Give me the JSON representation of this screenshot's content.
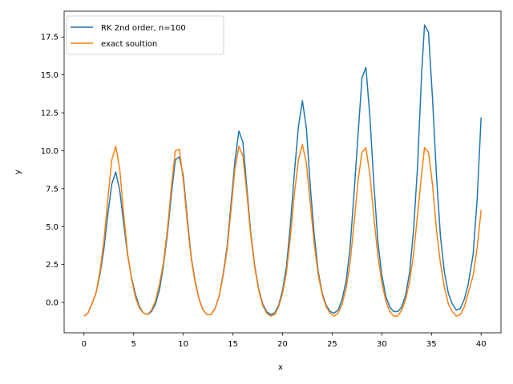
{
  "chart_data": {
    "type": "line",
    "title": "",
    "xlabel": "x",
    "ylabel": "y",
    "xlim": [
      -2,
      42
    ],
    "ylim": [
      -2,
      19.2
    ],
    "xticks": [
      0,
      5,
      10,
      15,
      20,
      25,
      30,
      35,
      40
    ],
    "xtick_labels": [
      "0",
      "5",
      "10",
      "15",
      "20",
      "25",
      "30",
      "35",
      "40"
    ],
    "yticks": [
      0,
      2.5,
      5,
      7.5,
      10,
      12.5,
      15,
      17.5
    ],
    "ytick_labels": [
      "0.0",
      "2.5",
      "5.0",
      "7.5",
      "10.0",
      "12.5",
      "15.0",
      "17.5"
    ],
    "grid": false,
    "legend_position": "top-left",
    "series": [
      {
        "name": "RK 2nd order, n=100",
        "color": "#1f77b4",
        "points": [
          [
            0,
            -0.9
          ],
          [
            0.4,
            -0.7
          ],
          [
            0.8,
            -0.1
          ],
          [
            1.2,
            0.6
          ],
          [
            1.6,
            1.8
          ],
          [
            2.0,
            3.5
          ],
          [
            2.4,
            5.8
          ],
          [
            2.8,
            7.8
          ],
          [
            3.2,
            8.6
          ],
          [
            3.6,
            7.4
          ],
          [
            4.0,
            5.2
          ],
          [
            4.4,
            3.1
          ],
          [
            4.8,
            1.6
          ],
          [
            5.2,
            0.5
          ],
          [
            5.6,
            -0.3
          ],
          [
            6.0,
            -0.7
          ],
          [
            6.4,
            -0.8
          ],
          [
            6.8,
            -0.6
          ],
          [
            7.2,
            -0.1
          ],
          [
            7.6,
            0.8
          ],
          [
            8.0,
            2.4
          ],
          [
            8.4,
            4.5
          ],
          [
            8.8,
            7.1
          ],
          [
            9.2,
            9.4
          ],
          [
            9.6,
            9.6
          ],
          [
            10.0,
            8.4
          ],
          [
            10.4,
            5.6
          ],
          [
            10.8,
            3.0
          ],
          [
            11.2,
            1.4
          ],
          [
            11.6,
            0.2
          ],
          [
            12.0,
            -0.5
          ],
          [
            12.4,
            -0.8
          ],
          [
            12.8,
            -0.8
          ],
          [
            13.2,
            -0.4
          ],
          [
            13.6,
            0.4
          ],
          [
            14.0,
            1.8
          ],
          [
            14.4,
            3.6
          ],
          [
            14.8,
            6.4
          ],
          [
            15.2,
            9.3
          ],
          [
            15.6,
            11.3
          ],
          [
            16.0,
            10.6
          ],
          [
            16.4,
            7.6
          ],
          [
            16.8,
            4.6
          ],
          [
            17.2,
            2.4
          ],
          [
            17.6,
            0.9
          ],
          [
            18.0,
            -0.1
          ],
          [
            18.4,
            -0.6
          ],
          [
            18.8,
            -0.8
          ],
          [
            19.2,
            -0.7
          ],
          [
            19.6,
            -0.2
          ],
          [
            20.0,
            0.8
          ],
          [
            20.4,
            2.4
          ],
          [
            20.8,
            5.2
          ],
          [
            21.2,
            8.6
          ],
          [
            21.6,
            11.6
          ],
          [
            22.0,
            13.3
          ],
          [
            22.4,
            11.5
          ],
          [
            22.8,
            7.6
          ],
          [
            23.2,
            4.4
          ],
          [
            23.6,
            2.0
          ],
          [
            24.0,
            0.6
          ],
          [
            24.4,
            -0.2
          ],
          [
            24.8,
            -0.6
          ],
          [
            25.2,
            -0.7
          ],
          [
            25.6,
            -0.5
          ],
          [
            26.0,
            0.2
          ],
          [
            26.4,
            1.4
          ],
          [
            26.8,
            3.6
          ],
          [
            27.2,
            7.2
          ],
          [
            27.6,
            11.0
          ],
          [
            28.0,
            14.8
          ],
          [
            28.4,
            15.5
          ],
          [
            28.8,
            12.2
          ],
          [
            29.2,
            7.8
          ],
          [
            29.6,
            4.0
          ],
          [
            30.0,
            1.8
          ],
          [
            30.4,
            0.4
          ],
          [
            30.8,
            -0.3
          ],
          [
            31.2,
            -0.6
          ],
          [
            31.6,
            -0.6
          ],
          [
            32.0,
            -0.3
          ],
          [
            32.4,
            0.5
          ],
          [
            32.8,
            2.0
          ],
          [
            33.2,
            4.8
          ],
          [
            33.6,
            9.0
          ],
          [
            34.0,
            15.0
          ],
          [
            34.3,
            18.3
          ],
          [
            34.7,
            17.8
          ],
          [
            35.1,
            13.5
          ],
          [
            35.5,
            8.4
          ],
          [
            35.9,
            4.4
          ],
          [
            36.3,
            2.0
          ],
          [
            36.7,
            0.6
          ],
          [
            37.1,
            -0.1
          ],
          [
            37.5,
            -0.5
          ],
          [
            37.9,
            -0.4
          ],
          [
            38.3,
            0.2
          ],
          [
            38.7,
            1.2
          ],
          [
            39.2,
            3.2
          ],
          [
            39.6,
            6.8
          ],
          [
            40.0,
            12.2
          ]
        ]
      },
      {
        "name": "exact soultion",
        "color": "#ff7f0e",
        "points": [
          [
            0,
            -0.9
          ],
          [
            0.4,
            -0.7
          ],
          [
            0.8,
            -0.1
          ],
          [
            1.2,
            0.6
          ],
          [
            1.6,
            2.0
          ],
          [
            2.0,
            4.0
          ],
          [
            2.4,
            6.8
          ],
          [
            2.8,
            9.4
          ],
          [
            3.2,
            10.3
          ],
          [
            3.6,
            8.8
          ],
          [
            4.0,
            5.8
          ],
          [
            4.4,
            3.2
          ],
          [
            4.8,
            1.5
          ],
          [
            5.2,
            0.3
          ],
          [
            5.6,
            -0.4
          ],
          [
            6.0,
            -0.7
          ],
          [
            6.4,
            -0.8
          ],
          [
            6.8,
            -0.5
          ],
          [
            7.2,
            0.1
          ],
          [
            7.6,
            1.2
          ],
          [
            8.0,
            2.6
          ],
          [
            8.4,
            4.8
          ],
          [
            8.8,
            7.6
          ],
          [
            9.2,
            10.0
          ],
          [
            9.6,
            10.1
          ],
          [
            10.0,
            8.1
          ],
          [
            10.4,
            5.3
          ],
          [
            10.8,
            2.9
          ],
          [
            11.2,
            1.3
          ],
          [
            11.6,
            0.2
          ],
          [
            12.0,
            -0.5
          ],
          [
            12.4,
            -0.8
          ],
          [
            12.8,
            -0.8
          ],
          [
            13.2,
            -0.4
          ],
          [
            13.6,
            0.4
          ],
          [
            14.0,
            1.7
          ],
          [
            14.4,
            3.4
          ],
          [
            14.8,
            6.0
          ],
          [
            15.2,
            8.8
          ],
          [
            15.6,
            10.3
          ],
          [
            16.0,
            9.7
          ],
          [
            16.4,
            7.2
          ],
          [
            16.8,
            4.4
          ],
          [
            17.2,
            2.3
          ],
          [
            17.6,
            0.8
          ],
          [
            18.0,
            -0.2
          ],
          [
            18.4,
            -0.7
          ],
          [
            18.8,
            -0.9
          ],
          [
            19.2,
            -0.8
          ],
          [
            19.6,
            -0.3
          ],
          [
            20.0,
            0.6
          ],
          [
            20.4,
            2.0
          ],
          [
            20.8,
            4.4
          ],
          [
            21.2,
            7.2
          ],
          [
            21.6,
            9.4
          ],
          [
            22.0,
            10.4
          ],
          [
            22.4,
            9.2
          ],
          [
            22.8,
            6.5
          ],
          [
            23.2,
            3.8
          ],
          [
            23.6,
            1.8
          ],
          [
            24.0,
            0.5
          ],
          [
            24.4,
            -0.3
          ],
          [
            24.8,
            -0.7
          ],
          [
            25.2,
            -0.9
          ],
          [
            25.6,
            -0.7
          ],
          [
            26.0,
            -0.1
          ],
          [
            26.4,
            0.9
          ],
          [
            26.8,
            2.6
          ],
          [
            27.2,
            5.2
          ],
          [
            27.6,
            8.0
          ],
          [
            28.0,
            9.9
          ],
          [
            28.4,
            10.2
          ],
          [
            28.8,
            8.4
          ],
          [
            29.2,
            5.6
          ],
          [
            29.6,
            3.1
          ],
          [
            30.0,
            1.3
          ],
          [
            30.4,
            0.1
          ],
          [
            30.8,
            -0.6
          ],
          [
            31.2,
            -0.9
          ],
          [
            31.6,
            -0.9
          ],
          [
            32.0,
            -0.5
          ],
          [
            32.4,
            0.2
          ],
          [
            32.8,
            1.4
          ],
          [
            33.2,
            3.2
          ],
          [
            33.6,
            5.8
          ],
          [
            34.0,
            8.4
          ],
          [
            34.3,
            10.2
          ],
          [
            34.7,
            9.9
          ],
          [
            35.1,
            7.8
          ],
          [
            35.5,
            4.8
          ],
          [
            35.9,
            2.6
          ],
          [
            36.3,
            1.0
          ],
          [
            36.7,
            -0.1
          ],
          [
            37.1,
            -0.6
          ],
          [
            37.5,
            -0.9
          ],
          [
            37.9,
            -0.8
          ],
          [
            38.3,
            -0.3
          ],
          [
            38.7,
            0.6
          ],
          [
            39.2,
            1.8
          ],
          [
            39.6,
            3.6
          ],
          [
            40.0,
            6.1
          ]
        ]
      }
    ]
  }
}
